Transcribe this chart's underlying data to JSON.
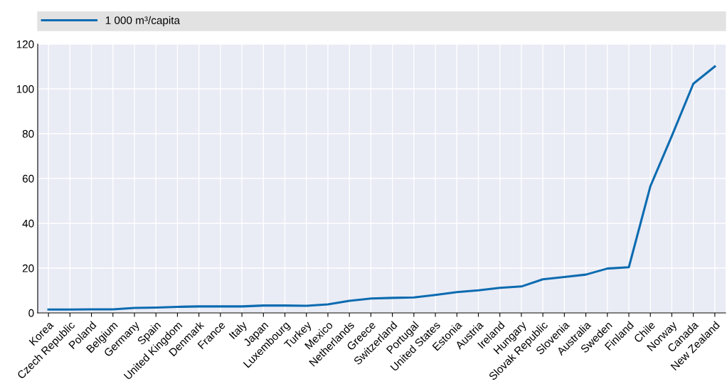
{
  "chart_data": {
    "type": "line",
    "categories": [
      "Korea",
      "Czech Republic",
      "Poland",
      "Belgium",
      "Germany",
      "Spain",
      "United Kingdom",
      "Denmark",
      "France",
      "Italy",
      "Japan",
      "Luxembourg",
      "Turkey",
      "Mexico",
      "Netherlands",
      "Greece",
      "Switzerland",
      "Portugal",
      "United States",
      "Estonia",
      "Austria",
      "Ireland",
      "Hungary",
      "Slovak Republic",
      "Slovenia",
      "Australia",
      "Sweden",
      "Finland",
      "Chile",
      "Norway",
      "Canada",
      "New Zealand"
    ],
    "series": [
      {
        "name": "1 000 m³/capita",
        "color": "#0b6bb0",
        "values": [
          1.5,
          1.5,
          1.6,
          1.6,
          2.2,
          2.4,
          2.7,
          2.9,
          2.9,
          2.9,
          3.3,
          3.3,
          3.2,
          3.8,
          5.4,
          6.4,
          6.7,
          6.9,
          8.0,
          9.3,
          10.1,
          11.2,
          11.8,
          15.0,
          16.0,
          17.1,
          19.8,
          20.4,
          56.5,
          79.0,
          102.3,
          110.0
        ]
      }
    ],
    "ylim": [
      0,
      120
    ],
    "yticks": [
      0,
      20,
      40,
      60,
      80,
      100,
      120
    ],
    "grid": true,
    "legend": "top",
    "marker": "none",
    "line_style": "solid"
  }
}
